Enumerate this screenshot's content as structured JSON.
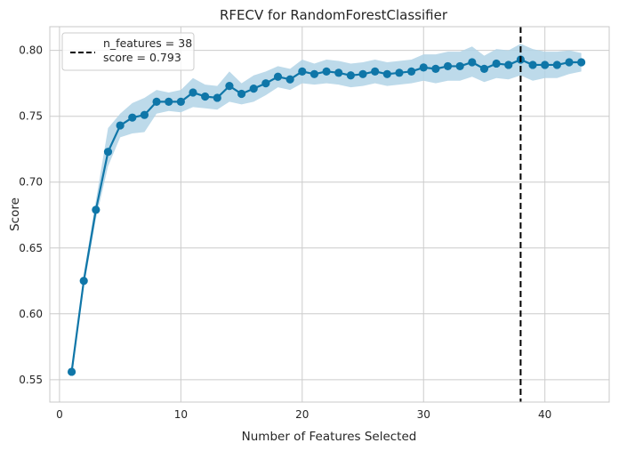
{
  "chart_data": {
    "type": "line",
    "title": "RFECV for RandomForestClassifier",
    "xlabel": "Number of Features Selected",
    "ylabel": "Score",
    "xlim": [
      -0.8,
      45.3
    ],
    "ylim": [
      0.533,
      0.818
    ],
    "xticks": [
      0,
      10,
      20,
      30,
      40
    ],
    "yticks": [
      0.55,
      0.6,
      0.65,
      0.7,
      0.75,
      0.8
    ],
    "ytick_labels": [
      "0.55",
      "0.60",
      "0.65",
      "0.70",
      "0.75",
      "0.80"
    ],
    "grid": true,
    "legend_position": "top-left",
    "x": [
      1,
      2,
      3,
      4,
      5,
      6,
      7,
      8,
      9,
      10,
      11,
      12,
      13,
      14,
      15,
      16,
      17,
      18,
      19,
      20,
      21,
      22,
      23,
      24,
      25,
      26,
      27,
      28,
      29,
      30,
      31,
      32,
      33,
      34,
      35,
      36,
      37,
      38,
      39,
      40,
      41,
      42,
      43
    ],
    "series": [
      {
        "values": [
          0.556,
          0.625,
          0.679,
          0.723,
          0.743,
          0.749,
          0.751,
          0.761,
          0.761,
          0.761,
          0.768,
          0.765,
          0.764,
          0.773,
          0.767,
          0.771,
          0.775,
          0.78,
          0.778,
          0.784,
          0.782,
          0.784,
          0.783,
          0.781,
          0.782,
          0.784,
          0.782,
          0.783,
          0.784,
          0.787,
          0.786,
          0.788,
          0.788,
          0.791,
          0.786,
          0.79,
          0.789,
          0.793,
          0.789,
          0.789,
          0.789,
          0.791,
          0.791
        ],
        "lower": [
          0.556,
          0.62,
          0.672,
          0.712,
          0.734,
          0.737,
          0.738,
          0.752,
          0.754,
          0.753,
          0.757,
          0.756,
          0.755,
          0.761,
          0.759,
          0.761,
          0.766,
          0.772,
          0.77,
          0.775,
          0.774,
          0.775,
          0.774,
          0.772,
          0.773,
          0.775,
          0.773,
          0.774,
          0.775,
          0.777,
          0.775,
          0.777,
          0.777,
          0.78,
          0.776,
          0.779,
          0.778,
          0.781,
          0.777,
          0.779,
          0.779,
          0.782,
          0.784
        ],
        "upper": [
          0.556,
          0.63,
          0.686,
          0.741,
          0.752,
          0.76,
          0.764,
          0.77,
          0.768,
          0.77,
          0.779,
          0.774,
          0.773,
          0.784,
          0.775,
          0.781,
          0.784,
          0.788,
          0.786,
          0.793,
          0.79,
          0.793,
          0.792,
          0.79,
          0.791,
          0.793,
          0.791,
          0.792,
          0.793,
          0.797,
          0.797,
          0.799,
          0.799,
          0.803,
          0.796,
          0.801,
          0.8,
          0.805,
          0.801,
          0.799,
          0.799,
          0.8,
          0.798
        ]
      }
    ],
    "optimal": {
      "n_features": 38,
      "score": 0.793,
      "legend_label": "n_features = 38\nscore = 0.793"
    },
    "colors": {
      "line": "#0f76a8",
      "band": "#b2d4e6",
      "grid": "#cccccc",
      "vline": "#000000",
      "axes_edge": "#c8c8c8"
    }
  }
}
